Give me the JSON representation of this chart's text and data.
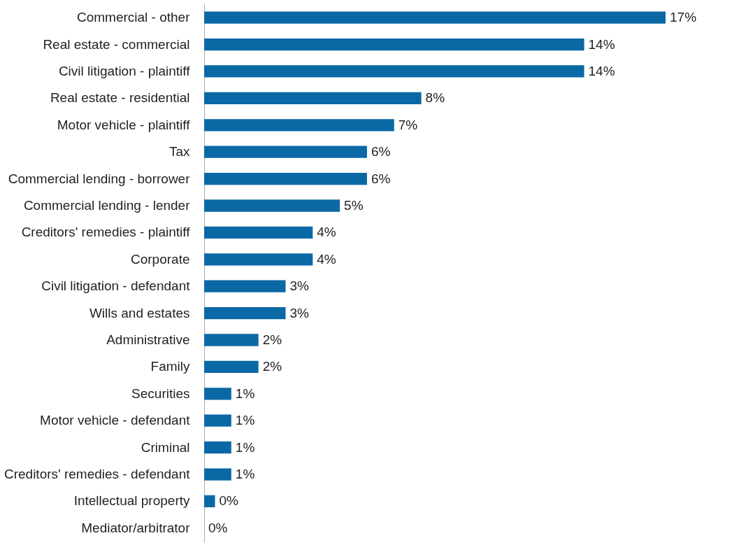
{
  "chart_data": {
    "type": "bar",
    "orientation": "horizontal",
    "categories": [
      "Commercial - other",
      "Real estate - commercial",
      "Civil litigation - plaintiff",
      "Real estate - residential",
      "Motor vehicle - plaintiff",
      "Tax",
      "Commercial lending - borrower",
      "Commercial lending - lender",
      "Creditors' remedies - plaintiff",
      "Corporate",
      "Civil litigation - defendant",
      "Wills and estates",
      "Administrative",
      "Family",
      "Securities",
      "Motor vehicle - defendant",
      "Criminal",
      "Creditors' remedies - defendant",
      "Intellectual property",
      "Mediator/arbitrator"
    ],
    "values": [
      17,
      14,
      14,
      8,
      7,
      6,
      6,
      5,
      4,
      4,
      3,
      3,
      2,
      2,
      1,
      1,
      1,
      1,
      0.4,
      0
    ],
    "value_labels": [
      "17%",
      "14%",
      "14%",
      "8%",
      "7%",
      "6%",
      "6%",
      "5%",
      "4%",
      "4%",
      "3%",
      "3%",
      "2%",
      "2%",
      "1%",
      "1%",
      "1%",
      "1%",
      "0%",
      "0%"
    ],
    "color": "#0a69a5",
    "grid": false
  }
}
